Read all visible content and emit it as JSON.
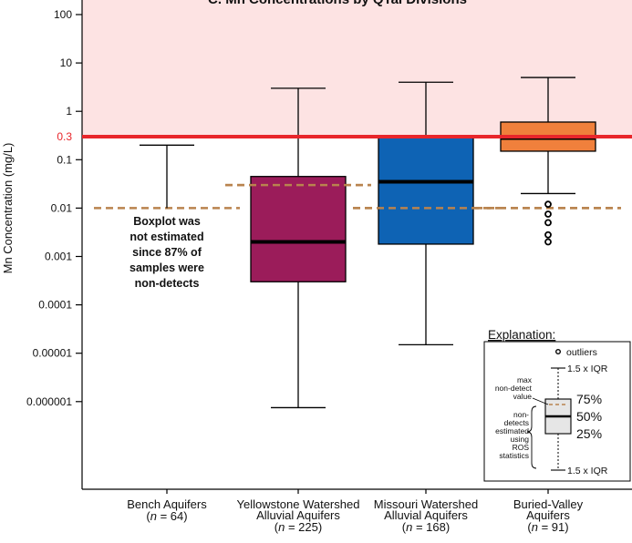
{
  "chart_data": {
    "type": "boxplot",
    "title": "C. Mn Concentrations by QTaI Divisions",
    "ylabel": "Mn Concentration (mg/L)",
    "yscale": "log",
    "ylim": [
      1e-07,
      100
    ],
    "yticks": [
      {
        "value": 100,
        "label": "100"
      },
      {
        "value": 10,
        "label": "10"
      },
      {
        "value": 1,
        "label": "1"
      },
      {
        "value": 0.1,
        "label": "0.1"
      },
      {
        "value": 0.01,
        "label": "0.01"
      },
      {
        "value": 0.001,
        "label": "0.001"
      },
      {
        "value": 0.0001,
        "label": "0.0001"
      },
      {
        "value": 1e-05,
        "label": "0.00001"
      },
      {
        "value": 1e-06,
        "label": "0.000001"
      }
    ],
    "reference_line": {
      "value": 0.3,
      "label": "0.3",
      "color": "#e8262b",
      "shade_above_color": "#fde3e3"
    },
    "categories": [
      {
        "line1": "Bench Aquifers",
        "line2": "",
        "n": "64",
        "n_prefix": "(",
        "n_var": "n",
        "n_eq": " = ",
        "n_suffix": ")"
      },
      {
        "line1": "Yellowstone Watershed",
        "line2": "Alluvial Aquifers",
        "n": "225",
        "n_prefix": "(",
        "n_var": "n",
        "n_eq": " = ",
        "n_suffix": ")"
      },
      {
        "line1": "Missouri Watershed",
        "line2": "Alluvial Aquifers",
        "n": "168",
        "n_prefix": "(",
        "n_var": "n",
        "n_eq": " = ",
        "n_suffix": ")"
      },
      {
        "line1": "Buried-Valley",
        "line2": "Aquifers",
        "n": "91",
        "n_prefix": "(",
        "n_var": "n",
        "n_eq": " = ",
        "n_suffix": ")"
      }
    ],
    "boxes": [
      {
        "name": "Bench Aquifers",
        "estimated": false,
        "whisker_high": 0.2,
        "max_non_detect": 0.01,
        "note": [
          "Boxplot was",
          "not estimated",
          "since 87% of",
          "samples were",
          "non-detects"
        ]
      },
      {
        "name": "Yellowstone Watershed Alluvial Aquifers",
        "estimated": true,
        "color": "#9b1c5a",
        "whisker_low": 7.5e-07,
        "q1": 0.0003,
        "median": 0.002,
        "q3": 0.045,
        "whisker_high": 3.0,
        "max_non_detect": 0.03,
        "outliers": []
      },
      {
        "name": "Missouri Watershed Alluvial Aquifers",
        "estimated": true,
        "color": "#0e63b4",
        "whisker_low": 1.5e-05,
        "q1": 0.0018,
        "median": 0.035,
        "q3": 0.3,
        "whisker_high": 4.0,
        "max_non_detect": 0.01,
        "outliers": []
      },
      {
        "name": "Buried-Valley Aquifers",
        "estimated": true,
        "color": "#f0803c",
        "whisker_low": 0.02,
        "q1": 0.15,
        "median": 0.28,
        "q3": 0.6,
        "whisker_high": 5.0,
        "max_non_detect": 0.01,
        "outliers": [
          0.012,
          0.0075,
          0.005,
          0.0028,
          0.002
        ]
      }
    ],
    "legend": {
      "title": "Explanation:",
      "outliers": "outliers",
      "upper_whisker": "1.5 x IQR",
      "lower_whisker": "1.5 x IQR",
      "max_nd": [
        "max",
        "non-detect",
        "value"
      ],
      "estimated": [
        "non-",
        "detects",
        "estimated",
        "using",
        "ROS",
        "statistics"
      ],
      "p75": "75%",
      "p50": "50%",
      "p25": "25%"
    }
  }
}
